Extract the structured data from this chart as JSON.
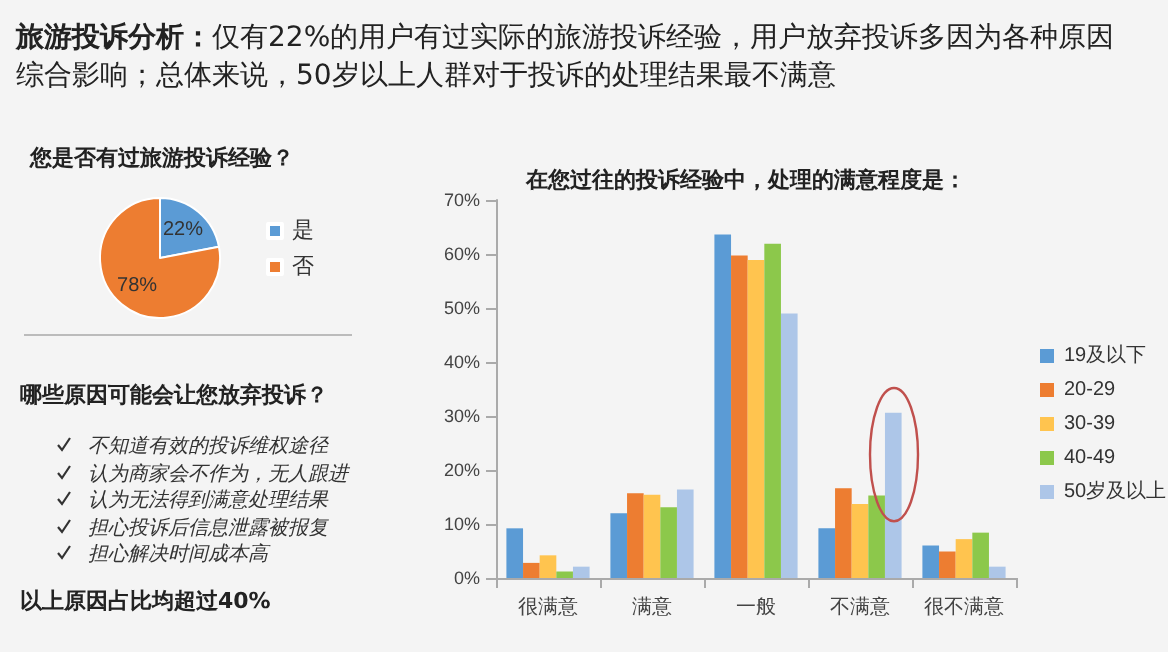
{
  "chart_data": [
    {
      "type": "other",
      "title": "旅游投诉分析：",
      "subtitle": "仅有22%的用户有过实际的旅游投诉经验，用户放弃投诉多因为各种原因综合影响；总体来说，50岁以上人群对于投诉的处理结果最不满意"
    },
    {
      "type": "pie",
      "title": "您是否有过旅游投诉经验？",
      "categories": [
        "是",
        "否"
      ],
      "values": [
        22,
        78
      ],
      "colors": [
        "#5b9bd5",
        "#ed7d31"
      ],
      "value_labels": [
        "22%",
        "78%"
      ],
      "legend": "right"
    },
    {
      "type": "bar",
      "title": "在您过往的投诉经验中，处理的满意程度是：",
      "categories": [
        "很满意",
        "满意",
        "一般",
        "不满意",
        "很不满意"
      ],
      "series": [
        {
          "name": "19及以下",
          "color": "#5b9bd5",
          "values": [
            9.2,
            12.0,
            63.6,
            9.2,
            6.0
          ]
        },
        {
          "name": "20-29",
          "color": "#ed7d31",
          "values": [
            2.8,
            15.7,
            59.7,
            16.6,
            4.9
          ]
        },
        {
          "name": "30-39",
          "color": "#ffc44f",
          "values": [
            4.2,
            15.4,
            58.9,
            13.7,
            7.2
          ]
        },
        {
          "name": "40-49",
          "color": "#8cc84b",
          "values": [
            1.2,
            13.1,
            61.9,
            15.3,
            8.4
          ]
        },
        {
          "name": "50岁及以上",
          "color": "#adc6e8",
          "values": [
            2.1,
            16.4,
            49.0,
            30.6,
            2.1
          ]
        }
      ],
      "ylim": [
        0,
        70
      ],
      "yticks": [
        {
          "value": 0,
          "label": "0%"
        },
        {
          "value": 10,
          "label": "10%"
        },
        {
          "value": 20,
          "label": "20%"
        },
        {
          "value": 30,
          "label": "30%"
        },
        {
          "value": 40,
          "label": "40%"
        },
        {
          "value": 50,
          "label": "50%"
        },
        {
          "value": 60,
          "label": "60%"
        },
        {
          "value": 70,
          "label": "70%"
        }
      ],
      "grid": false,
      "legend": "right"
    },
    {
      "type": "other",
      "title": "哪些原因可能会让您放弃投诉？",
      "annotations": [
        "不知道有效的投诉维权途径",
        "认为商家会不作为，无人跟进",
        "认为无法得到满意处理结果",
        "担心投诉后信息泄露被报复",
        "担心解决时间成本高",
        "以上原因占比均超过40%"
      ]
    }
  ]
}
